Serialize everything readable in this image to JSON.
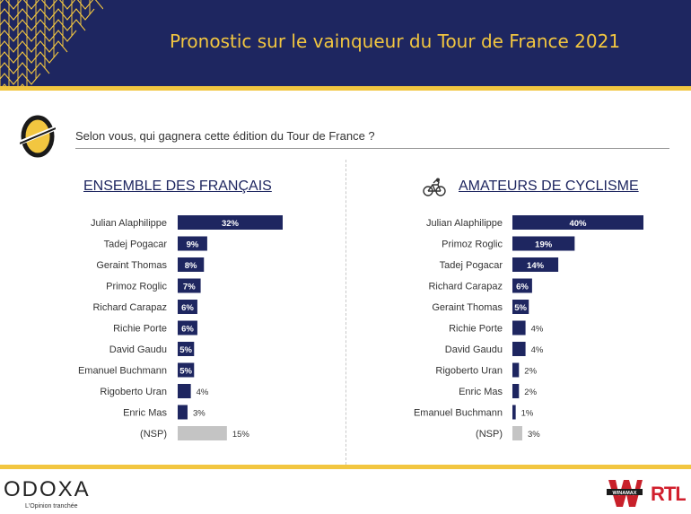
{
  "header": {
    "title": "Pronostic sur le vainqueur du Tour de France 2021"
  },
  "question": "Selon vous, qui gagnera cette édition du Tour de France ?",
  "colors": {
    "navy": "#1e2660",
    "gold": "#f2c640",
    "nsp": "#c4c4c4"
  },
  "chart_data": [
    {
      "type": "bar",
      "orientation": "horizontal",
      "title": "ENSEMBLE DES FRANÇAIS",
      "unit": "%",
      "categories": [
        "Julian Alaphilippe",
        "Tadej Pogacar",
        "Geraint Thomas",
        "Primoz Roglic",
        "Richard Carapaz",
        "Richie Porte",
        "David Gaudu",
        "Emanuel Buchmann",
        "Rigoberto Uran",
        "Enric Mas",
        "(NSP)"
      ],
      "values": [
        32,
        9,
        8,
        7,
        6,
        6,
        5,
        5,
        4,
        3,
        15
      ]
    },
    {
      "type": "bar",
      "orientation": "horizontal",
      "title": "AMATEURS DE CYCLISME",
      "unit": "%",
      "categories": [
        "Julian Alaphilippe",
        "Primoz Roglic",
        "Tadej Pogacar",
        "Richard Carapaz",
        "Geraint Thomas",
        "Richie Porte",
        "David Gaudu",
        "Rigoberto Uran",
        "Enric Mas",
        "Emanuel Buchmann",
        "(NSP)"
      ],
      "values": [
        40,
        19,
        14,
        6,
        5,
        4,
        4,
        2,
        2,
        1,
        3
      ]
    }
  ],
  "footer": {
    "brand": "ODOXA",
    "tagline": "L'Opinion tranchée",
    "partner1": "WINAMAX",
    "partner2": "RTL"
  }
}
